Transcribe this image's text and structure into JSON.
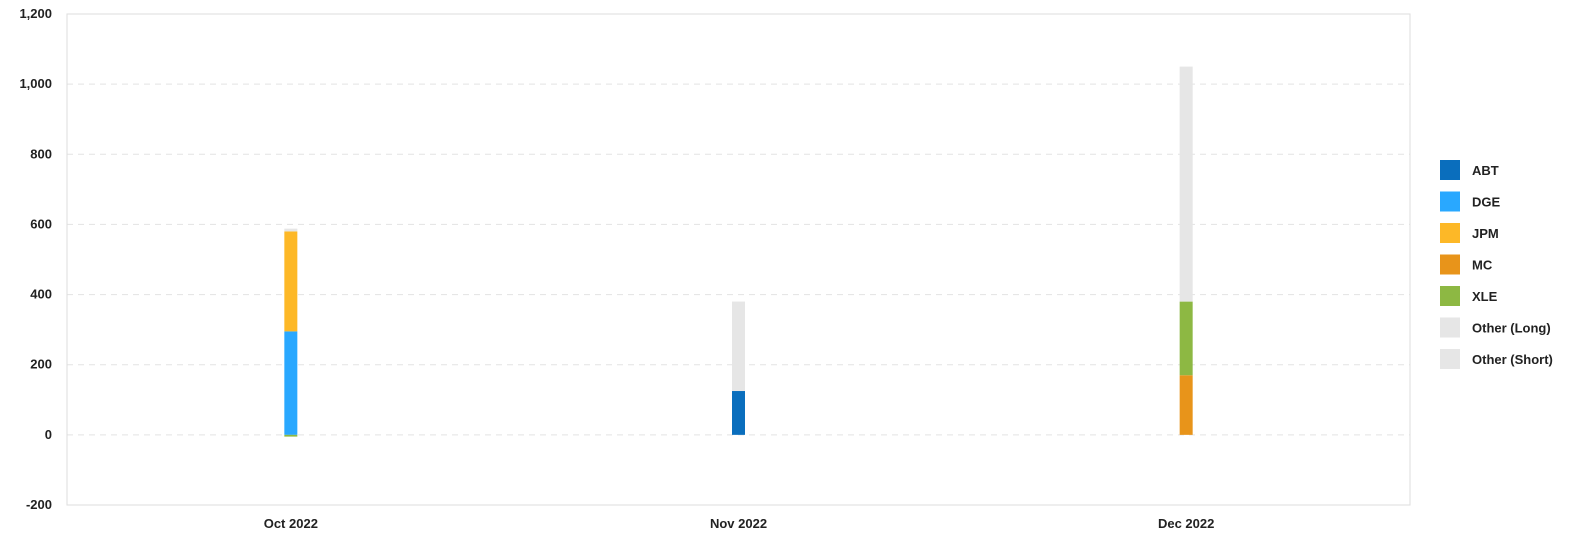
{
  "chart_data": {
    "type": "bar",
    "stacked": true,
    "categories": [
      "Oct 2022",
      "Nov 2022",
      "Dec 2022"
    ],
    "ylim": [
      -200,
      1200
    ],
    "yticks": [
      -200,
      0,
      200,
      400,
      600,
      800,
      1000,
      1200
    ],
    "ytick_labels": [
      "-200",
      "0",
      "200",
      "400",
      "600",
      "800",
      "1,000",
      "1,200"
    ],
    "grid": true,
    "legend_position": "right",
    "series": [
      {
        "name": "ABT",
        "color": "#0A6EBD",
        "values": [
          0,
          125,
          0
        ]
      },
      {
        "name": "DGE",
        "color": "#29A8FF",
        "values": [
          295,
          0,
          0
        ]
      },
      {
        "name": "JPM",
        "color": "#FDB827",
        "values": [
          285,
          0,
          0
        ]
      },
      {
        "name": "MC",
        "color": "#E8941A",
        "values": [
          0,
          0,
          170
        ]
      },
      {
        "name": "XLE",
        "color": "#8DB843",
        "values": [
          -5,
          0,
          210
        ]
      },
      {
        "name": "Other (Long)",
        "color": "#E6E6E6",
        "values": [
          8,
          255,
          670
        ]
      },
      {
        "name": "Other (Short)",
        "color": "#E6E6E6",
        "values": [
          0,
          0,
          0
        ]
      }
    ]
  }
}
